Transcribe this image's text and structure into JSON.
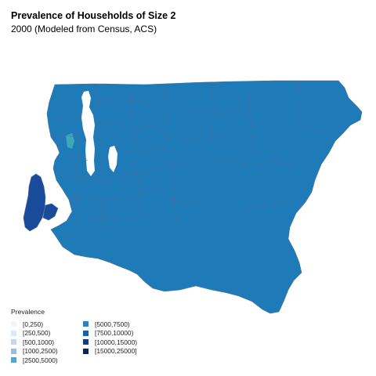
{
  "header": {
    "title": "Prevalence of Households of Size 2",
    "subtitle": "2000 (Modeled from Census, ACS)"
  },
  "map": {
    "region_color": "#1f7ab8",
    "island_color": "#1a4b9a",
    "highlight_color": "#3ea8b8",
    "boundary_color": "#4a6f9c",
    "water_color": "#ffffff"
  },
  "legend": {
    "title": "Prevalence",
    "items": [
      {
        "label": "[0,250)",
        "color": "#f2f7fc"
      },
      {
        "label": "[250,500)",
        "color": "#dbe8f5"
      },
      {
        "label": "[500,1000)",
        "color": "#c3d8ee"
      },
      {
        "label": "[1000,2500)",
        "color": "#92c0de"
      },
      {
        "label": "[2500,5000)",
        "color": "#5aa0d0"
      },
      {
        "label": "[5000,7500)",
        "color": "#3380bd"
      },
      {
        "label": "[7500,10000)",
        "color": "#1a5fa8"
      },
      {
        "label": "[10000,15000)",
        "color": "#0c3f86"
      },
      {
        "label": "[15000,25000]",
        "color": "#08275a"
      }
    ]
  }
}
